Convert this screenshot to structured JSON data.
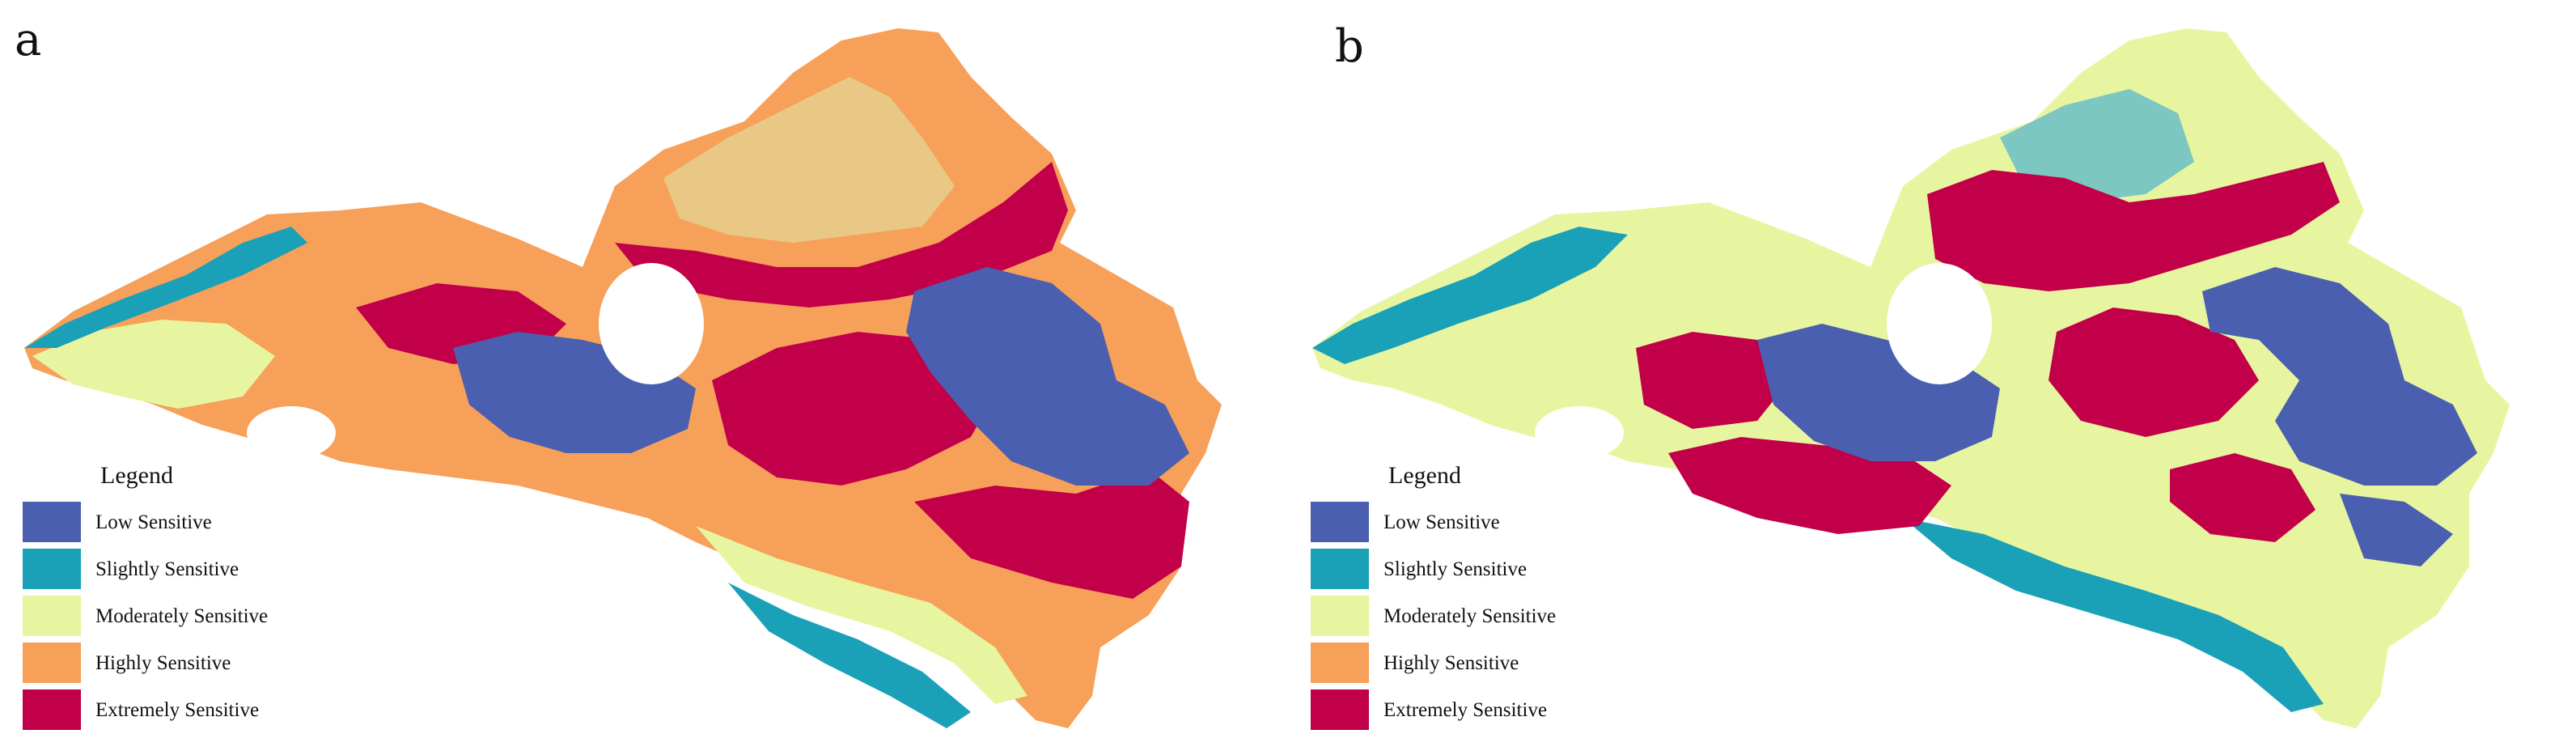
{
  "panels": [
    {
      "letter": "a",
      "legend": {
        "title": "Legend",
        "items": [
          {
            "label": "Low Sensitive",
            "color": "#4a5fb0"
          },
          {
            "label": "Slightly Sensitive",
            "color": "#1aa1b8"
          },
          {
            "label": "Moderately Sensitive",
            "color": "#e8f5a0"
          },
          {
            "label": "Highly Sensitive",
            "color": "#f7a05a"
          },
          {
            "label": "Extremely Sensitive",
            "color": "#c2004a"
          }
        ]
      }
    },
    {
      "letter": "b",
      "legend": {
        "title": "Legend",
        "items": [
          {
            "label": "Low Sensitive",
            "color": "#4a5fb0"
          },
          {
            "label": "Slightly Sensitive",
            "color": "#1aa1b8"
          },
          {
            "label": "Moderately Sensitive",
            "color": "#e8f5a0"
          },
          {
            "label": "Highly Sensitive",
            "color": "#f7a05a"
          },
          {
            "label": "Extremely Sensitive",
            "color": "#c2004a"
          }
        ]
      }
    }
  ]
}
